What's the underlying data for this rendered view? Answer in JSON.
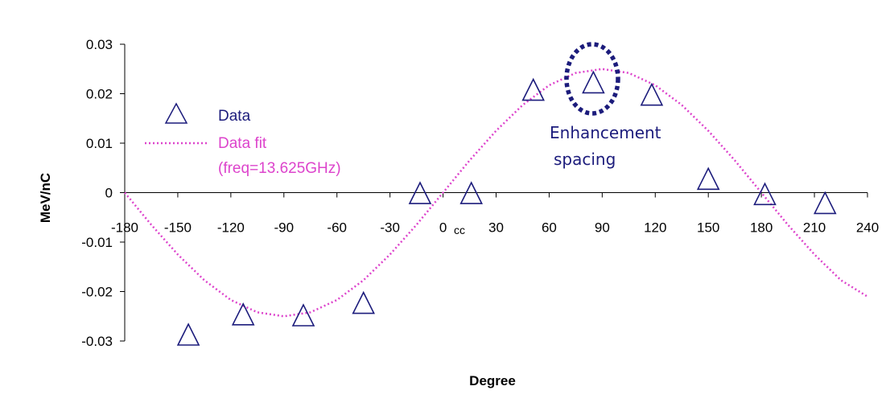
{
  "chart_data": {
    "type": "scatter",
    "xlabel": "Degree",
    "ylabel": "MeV/nC",
    "xlim": [
      -180,
      240
    ],
    "ylim": [
      -0.03,
      0.03
    ],
    "x_ticks": [
      "-180",
      "-150",
      "-120",
      "-90",
      "-60",
      "-30",
      "0",
      "30",
      "60",
      "90",
      "120",
      "150",
      "180",
      "210",
      "240"
    ],
    "y_ticks": [
      "0.03",
      "0.02",
      "0.01",
      "0",
      "-0.01",
      "-0.02",
      "-0.03"
    ],
    "grid": false,
    "legend_position": "left",
    "series": [
      {
        "name": "Data",
        "kind": "scatter",
        "marker": "triangle",
        "color": "#1c1c7c",
        "x": [
          -144,
          -113,
          -79,
          -45,
          -13,
          16,
          51,
          85,
          118,
          150,
          182,
          216
        ],
        "y": [
          -0.0287,
          -0.0246,
          -0.0248,
          -0.0223,
          -0.0001,
          -0.0001,
          0.0208,
          0.0223,
          0.0198,
          0.0028,
          -0.0003,
          -0.0021
        ]
      },
      {
        "name": "Data fit",
        "legend_sub": "(freq=13.625GHz)",
        "kind": "line",
        "style": "dotted",
        "color": "#dd44cc",
        "x": [
          -180,
          -165,
          -150,
          -135,
          -120,
          -105,
          -90,
          -75,
          -60,
          -45,
          -30,
          -15,
          0,
          15,
          30,
          45,
          60,
          75,
          90,
          105,
          120,
          135,
          150,
          165,
          180,
          195,
          210,
          225,
          240
        ],
        "y": [
          0.0,
          -0.0065,
          -0.0125,
          -0.0177,
          -0.0217,
          -0.0242,
          -0.025,
          -0.0242,
          -0.0217,
          -0.0177,
          -0.0125,
          -0.0065,
          0.0,
          0.0065,
          0.0125,
          0.0177,
          0.0217,
          0.0242,
          0.025,
          0.0242,
          0.0217,
          0.0177,
          0.0125,
          0.0065,
          0.0,
          -0.0065,
          -0.0125,
          -0.0177,
          -0.021
        ]
      }
    ],
    "annotations": [
      {
        "text_lines": [
          "Enhancement",
          "spacing"
        ],
        "color": "#1c1c7c"
      },
      {
        "text": "cc"
      }
    ]
  }
}
